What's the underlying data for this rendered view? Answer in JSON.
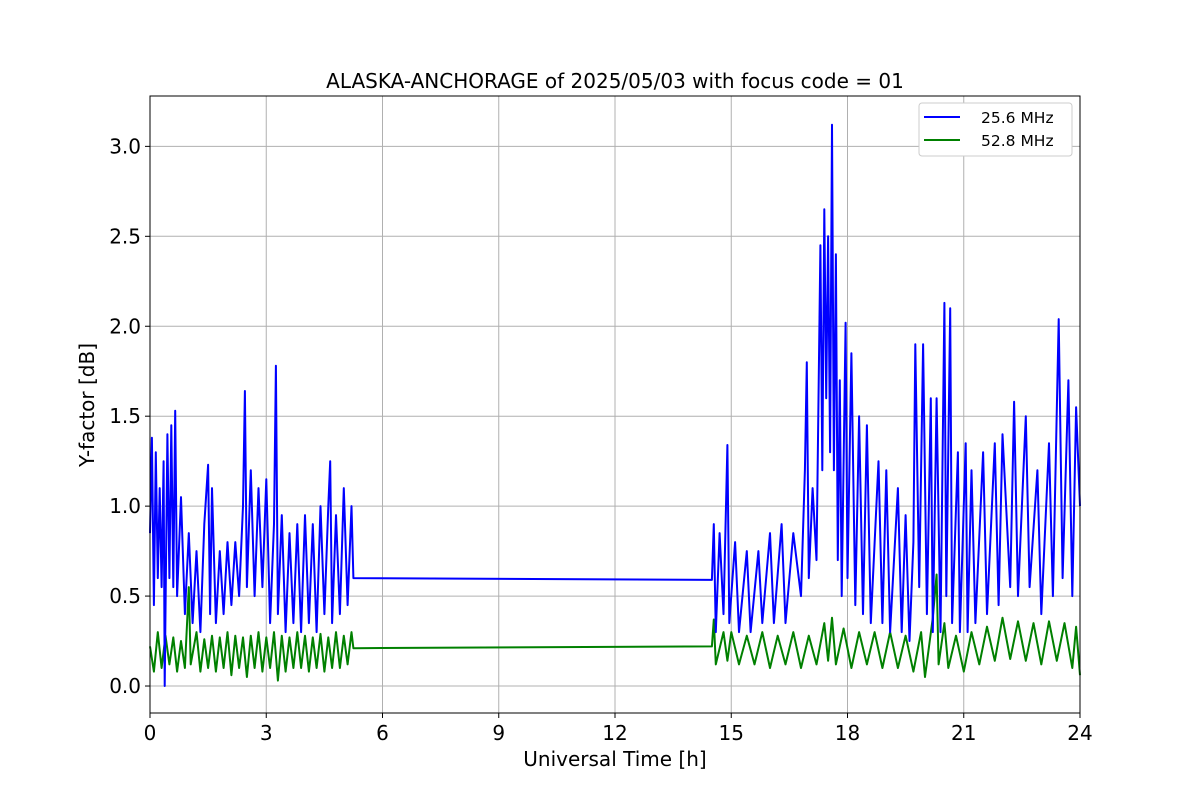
{
  "chart_data": {
    "type": "line",
    "title": "ALASKA-ANCHORAGE of 2025/05/03 with focus code = 01",
    "xlabel": "Universal Time [h]",
    "ylabel": "Y-factor [dB]",
    "xlim": [
      0,
      24
    ],
    "ylim": [
      -0.15,
      3.28
    ],
    "xticks": [
      0,
      3,
      6,
      9,
      12,
      15,
      18,
      21,
      24
    ],
    "yticks": [
      0.0,
      0.5,
      1.0,
      1.5,
      2.0,
      2.5,
      3.0
    ],
    "xtick_labels": [
      "0",
      "3",
      "6",
      "9",
      "12",
      "15",
      "18",
      "21",
      "24"
    ],
    "ytick_labels": [
      "0.0",
      "0.5",
      "1.0",
      "1.5",
      "2.0",
      "2.5",
      "3.0"
    ],
    "grid": true,
    "legend_position": "top-right",
    "series": [
      {
        "name": "25.6 MHz",
        "color": "#0000ff",
        "points": [
          [
            0.0,
            0.85
          ],
          [
            0.05,
            1.38
          ],
          [
            0.1,
            0.45
          ],
          [
            0.15,
            1.3
          ],
          [
            0.2,
            0.6
          ],
          [
            0.25,
            1.1
          ],
          [
            0.3,
            0.55
          ],
          [
            0.35,
            1.25
          ],
          [
            0.38,
            0.0
          ],
          [
            0.45,
            1.4
          ],
          [
            0.5,
            0.6
          ],
          [
            0.55,
            1.45
          ],
          [
            0.6,
            0.55
          ],
          [
            0.65,
            1.53
          ],
          [
            0.7,
            0.5
          ],
          [
            0.8,
            1.05
          ],
          [
            0.9,
            0.4
          ],
          [
            1.0,
            0.85
          ],
          [
            1.1,
            0.35
          ],
          [
            1.2,
            0.75
          ],
          [
            1.3,
            0.3
          ],
          [
            1.4,
            0.9
          ],
          [
            1.5,
            1.23
          ],
          [
            1.55,
            0.4
          ],
          [
            1.6,
            1.1
          ],
          [
            1.7,
            0.35
          ],
          [
            1.8,
            0.75
          ],
          [
            1.9,
            0.4
          ],
          [
            2.0,
            0.8
          ],
          [
            2.1,
            0.45
          ],
          [
            2.2,
            0.8
          ],
          [
            2.3,
            0.5
          ],
          [
            2.4,
            1.0
          ],
          [
            2.45,
            1.64
          ],
          [
            2.5,
            0.55
          ],
          [
            2.6,
            1.2
          ],
          [
            2.7,
            0.5
          ],
          [
            2.8,
            1.1
          ],
          [
            2.9,
            0.55
          ],
          [
            3.0,
            1.15
          ],
          [
            3.1,
            0.35
          ],
          [
            3.2,
            0.9
          ],
          [
            3.25,
            1.78
          ],
          [
            3.3,
            0.4
          ],
          [
            3.4,
            0.95
          ],
          [
            3.5,
            0.3
          ],
          [
            3.6,
            0.85
          ],
          [
            3.7,
            0.35
          ],
          [
            3.8,
            0.9
          ],
          [
            3.9,
            0.3
          ],
          [
            4.0,
            0.95
          ],
          [
            4.1,
            0.35
          ],
          [
            4.2,
            0.9
          ],
          [
            4.3,
            0.3
          ],
          [
            4.4,
            1.0
          ],
          [
            4.5,
            0.4
          ],
          [
            4.6,
            1.0
          ],
          [
            4.65,
            1.25
          ],
          [
            4.7,
            0.35
          ],
          [
            4.8,
            0.95
          ],
          [
            4.9,
            0.4
          ],
          [
            5.0,
            1.1
          ],
          [
            5.1,
            0.45
          ],
          [
            5.2,
            1.0
          ],
          [
            5.25,
            0.6
          ],
          [
            14.5,
            0.59
          ],
          [
            14.55,
            0.9
          ],
          [
            14.6,
            0.3
          ],
          [
            14.7,
            0.85
          ],
          [
            14.8,
            0.4
          ],
          [
            14.9,
            1.34
          ],
          [
            14.95,
            0.35
          ],
          [
            15.1,
            0.8
          ],
          [
            15.2,
            0.3
          ],
          [
            15.4,
            0.75
          ],
          [
            15.5,
            0.3
          ],
          [
            15.7,
            0.75
          ],
          [
            15.8,
            0.35
          ],
          [
            16.0,
            0.85
          ],
          [
            16.1,
            0.35
          ],
          [
            16.3,
            0.9
          ],
          [
            16.4,
            0.35
          ],
          [
            16.6,
            0.85
          ],
          [
            16.8,
            0.5
          ],
          [
            16.9,
            1.2
          ],
          [
            16.95,
            1.8
          ],
          [
            17.0,
            0.6
          ],
          [
            17.1,
            1.1
          ],
          [
            17.2,
            0.7
          ],
          [
            17.3,
            2.45
          ],
          [
            17.35,
            1.2
          ],
          [
            17.4,
            2.65
          ],
          [
            17.45,
            1.6
          ],
          [
            17.5,
            2.5
          ],
          [
            17.55,
            1.3
          ],
          [
            17.6,
            3.12
          ],
          [
            17.65,
            1.2
          ],
          [
            17.7,
            2.4
          ],
          [
            17.75,
            0.7
          ],
          [
            17.8,
            1.7
          ],
          [
            17.85,
            0.5
          ],
          [
            17.95,
            2.02
          ],
          [
            18.0,
            0.6
          ],
          [
            18.1,
            1.85
          ],
          [
            18.2,
            0.45
          ],
          [
            18.3,
            1.5
          ],
          [
            18.4,
            0.4
          ],
          [
            18.5,
            1.45
          ],
          [
            18.6,
            0.35
          ],
          [
            18.8,
            1.25
          ],
          [
            18.9,
            0.35
          ],
          [
            19.0,
            1.2
          ],
          [
            19.1,
            0.3
          ],
          [
            19.3,
            1.1
          ],
          [
            19.4,
            0.3
          ],
          [
            19.5,
            0.95
          ],
          [
            19.6,
            0.25
          ],
          [
            19.7,
            0.8
          ],
          [
            19.75,
            1.9
          ],
          [
            19.85,
            0.55
          ],
          [
            19.95,
            1.9
          ],
          [
            20.05,
            0.4
          ],
          [
            20.15,
            1.6
          ],
          [
            20.2,
            0.3
          ],
          [
            20.3,
            1.6
          ],
          [
            20.4,
            0.3
          ],
          [
            20.5,
            2.13
          ],
          [
            20.55,
            0.5
          ],
          [
            20.65,
            2.1
          ],
          [
            20.7,
            0.35
          ],
          [
            20.85,
            1.3
          ],
          [
            20.9,
            0.3
          ],
          [
            21.05,
            1.35
          ],
          [
            21.1,
            0.3
          ],
          [
            21.2,
            1.2
          ],
          [
            21.3,
            0.35
          ],
          [
            21.5,
            1.3
          ],
          [
            21.6,
            0.4
          ],
          [
            21.8,
            1.35
          ],
          [
            21.9,
            0.45
          ],
          [
            22.0,
            1.4
          ],
          [
            22.2,
            0.55
          ],
          [
            22.3,
            1.58
          ],
          [
            22.4,
            0.5
          ],
          [
            22.6,
            1.5
          ],
          [
            22.7,
            0.55
          ],
          [
            22.9,
            1.2
          ],
          [
            23.0,
            0.4
          ],
          [
            23.2,
            1.35
          ],
          [
            23.3,
            0.5
          ],
          [
            23.45,
            2.04
          ],
          [
            23.55,
            0.6
          ],
          [
            23.7,
            1.7
          ],
          [
            23.8,
            0.5
          ],
          [
            23.9,
            1.55
          ],
          [
            24.0,
            1.0
          ]
        ]
      },
      {
        "name": "52.8 MHz",
        "color": "#008000",
        "points": [
          [
            0.0,
            0.22
          ],
          [
            0.1,
            0.08
          ],
          [
            0.2,
            0.3
          ],
          [
            0.3,
            0.1
          ],
          [
            0.4,
            0.28
          ],
          [
            0.5,
            0.12
          ],
          [
            0.6,
            0.27
          ],
          [
            0.7,
            0.08
          ],
          [
            0.8,
            0.25
          ],
          [
            0.9,
            0.1
          ],
          [
            1.0,
            0.55
          ],
          [
            1.05,
            0.12
          ],
          [
            1.2,
            0.3
          ],
          [
            1.3,
            0.08
          ],
          [
            1.4,
            0.26
          ],
          [
            1.5,
            0.1
          ],
          [
            1.6,
            0.28
          ],
          [
            1.7,
            0.08
          ],
          [
            1.8,
            0.27
          ],
          [
            1.9,
            0.1
          ],
          [
            2.0,
            0.3
          ],
          [
            2.1,
            0.06
          ],
          [
            2.2,
            0.28
          ],
          [
            2.3,
            0.1
          ],
          [
            2.4,
            0.27
          ],
          [
            2.5,
            0.05
          ],
          [
            2.6,
            0.28
          ],
          [
            2.7,
            0.1
          ],
          [
            2.8,
            0.3
          ],
          [
            2.9,
            0.08
          ],
          [
            3.0,
            0.27
          ],
          [
            3.1,
            0.1
          ],
          [
            3.2,
            0.3
          ],
          [
            3.3,
            0.03
          ],
          [
            3.4,
            0.28
          ],
          [
            3.5,
            0.08
          ],
          [
            3.6,
            0.27
          ],
          [
            3.7,
            0.1
          ],
          [
            3.8,
            0.3
          ],
          [
            3.9,
            0.1
          ],
          [
            4.0,
            0.28
          ],
          [
            4.1,
            0.08
          ],
          [
            4.2,
            0.27
          ],
          [
            4.3,
            0.1
          ],
          [
            4.4,
            0.29
          ],
          [
            4.5,
            0.08
          ],
          [
            4.6,
            0.27
          ],
          [
            4.7,
            0.1
          ],
          [
            4.8,
            0.3
          ],
          [
            4.9,
            0.1
          ],
          [
            5.0,
            0.28
          ],
          [
            5.1,
            0.12
          ],
          [
            5.2,
            0.3
          ],
          [
            5.25,
            0.21
          ],
          [
            14.5,
            0.22
          ],
          [
            14.55,
            0.37
          ],
          [
            14.6,
            0.12
          ],
          [
            14.8,
            0.3
          ],
          [
            14.9,
            0.14
          ],
          [
            15.0,
            0.3
          ],
          [
            15.2,
            0.12
          ],
          [
            15.4,
            0.28
          ],
          [
            15.6,
            0.12
          ],
          [
            15.8,
            0.3
          ],
          [
            16.0,
            0.1
          ],
          [
            16.2,
            0.28
          ],
          [
            16.4,
            0.12
          ],
          [
            16.6,
            0.3
          ],
          [
            16.8,
            0.1
          ],
          [
            17.0,
            0.28
          ],
          [
            17.2,
            0.12
          ],
          [
            17.4,
            0.35
          ],
          [
            17.5,
            0.14
          ],
          [
            17.6,
            0.38
          ],
          [
            17.7,
            0.12
          ],
          [
            17.9,
            0.32
          ],
          [
            18.1,
            0.1
          ],
          [
            18.3,
            0.3
          ],
          [
            18.5,
            0.12
          ],
          [
            18.7,
            0.3
          ],
          [
            18.9,
            0.1
          ],
          [
            19.1,
            0.3
          ],
          [
            19.3,
            0.1
          ],
          [
            19.5,
            0.28
          ],
          [
            19.7,
            0.08
          ],
          [
            19.9,
            0.3
          ],
          [
            20.0,
            0.05
          ],
          [
            20.2,
            0.38
          ],
          [
            20.3,
            0.62
          ],
          [
            20.35,
            0.12
          ],
          [
            20.5,
            0.35
          ],
          [
            20.6,
            0.1
          ],
          [
            20.8,
            0.28
          ],
          [
            21.0,
            0.08
          ],
          [
            21.2,
            0.3
          ],
          [
            21.4,
            0.12
          ],
          [
            21.6,
            0.33
          ],
          [
            21.8,
            0.14
          ],
          [
            22.0,
            0.38
          ],
          [
            22.2,
            0.15
          ],
          [
            22.4,
            0.36
          ],
          [
            22.6,
            0.14
          ],
          [
            22.8,
            0.35
          ],
          [
            23.0,
            0.12
          ],
          [
            23.2,
            0.36
          ],
          [
            23.4,
            0.14
          ],
          [
            23.6,
            0.35
          ],
          [
            23.8,
            0.1
          ],
          [
            23.9,
            0.33
          ],
          [
            24.0,
            0.06
          ]
        ]
      }
    ]
  }
}
